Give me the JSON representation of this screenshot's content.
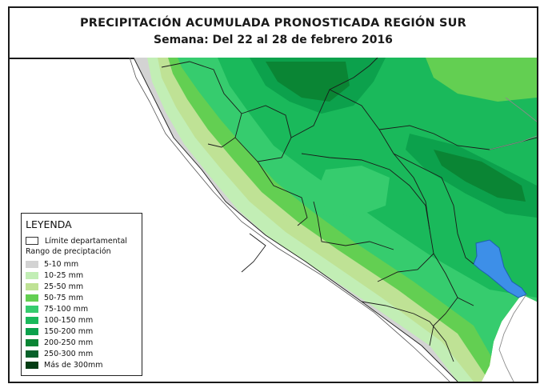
{
  "title": "PRECIPITACIÓN ACUMULADA PRONOSTICADA REGIÓN SUR",
  "subtitle": "Semana: Del 22 al 28 de febrero 2016",
  "legend": {
    "title": "LEYENDA",
    "boundary_label": "Límite departamental",
    "range_label": "Rango de preciptación",
    "classes": [
      {
        "label": "5-10 mm",
        "color": "#d3d3d3"
      },
      {
        "label": "10-25 mm",
        "color": "#c2eeb5"
      },
      {
        "label": "25-50 mm",
        "color": "#bfe295"
      },
      {
        "label": "50-75 mm",
        "color": "#63cf52"
      },
      {
        "label": "75-100 mm",
        "color": "#36cc6e"
      },
      {
        "label": "100-150 mm",
        "color": "#1ab95b"
      },
      {
        "label": "150-200 mm",
        "color": "#0ca14c"
      },
      {
        "label": "200-250 mm",
        "color": "#0a8534"
      },
      {
        "label": "250-300 mm",
        "color": "#07612a"
      },
      {
        "label": "Más de 300mm",
        "color": "#033d14"
      }
    ]
  },
  "colors": {
    "lake": "#3d8fe8",
    "boundary": "#1a1a1a",
    "country_border": "#8a8a8a"
  }
}
